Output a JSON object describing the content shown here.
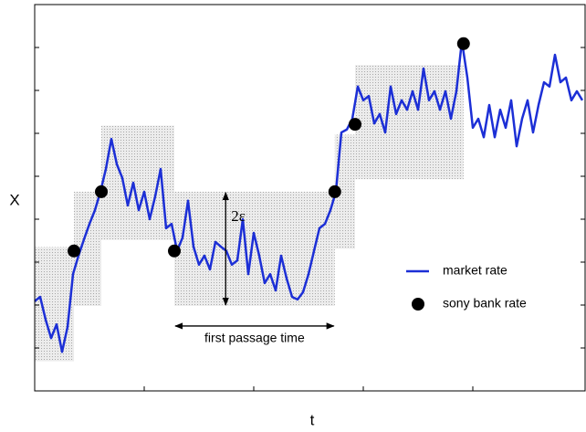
{
  "chart_data": {
    "type": "line",
    "x_label": "t",
    "y_label": "X",
    "annotations": {
      "epsilon_label": "2ε",
      "passage_label": "first passage time"
    },
    "xlim": [
      0,
      100.5
    ],
    "ylim": [
      0,
      9
    ],
    "xticks": [
      20,
      40,
      60,
      80
    ],
    "yticks": [
      1,
      2,
      3,
      4,
      5,
      6,
      7,
      8
    ],
    "grid": false,
    "legend": "lower right",
    "x": [
      0,
      1,
      2,
      3,
      4,
      5,
      6,
      7,
      8,
      9,
      10,
      11,
      12,
      13,
      14,
      15,
      16,
      17,
      18,
      19,
      20,
      21,
      22,
      23,
      24,
      25,
      26,
      27,
      28,
      29,
      30,
      31,
      32,
      33,
      34,
      35,
      36,
      37,
      38,
      39,
      40,
      41,
      42,
      43,
      44,
      45,
      46,
      47,
      48,
      49,
      50,
      51,
      52,
      53,
      54,
      55,
      56,
      57,
      58,
      59,
      60,
      61,
      62,
      63,
      64,
      65,
      66,
      67,
      68,
      69,
      70,
      71,
      72,
      73,
      74,
      75,
      76,
      77,
      78,
      79,
      80,
      81,
      82,
      83,
      84,
      85,
      86,
      87,
      88,
      89,
      90,
      91,
      92,
      93,
      94,
      95,
      96,
      97,
      98,
      99,
      100
    ],
    "series": [
      {
        "name": "market rate",
        "color": "#1c2fd6",
        "values": [
          2.09,
          2.19,
          1.66,
          1.23,
          1.55,
          0.91,
          1.49,
          2.72,
          3.15,
          3.53,
          3.89,
          4.21,
          4.64,
          5.17,
          5.87,
          5.28,
          4.96,
          4.32,
          4.85,
          4.21,
          4.64,
          4.0,
          4.53,
          5.17,
          3.79,
          3.89,
          3.26,
          3.57,
          4.43,
          3.36,
          2.94,
          3.15,
          2.83,
          3.47,
          3.36,
          3.26,
          2.94,
          3.04,
          4.0,
          2.72,
          3.68,
          3.15,
          2.51,
          2.72,
          2.34,
          3.15,
          2.62,
          2.19,
          2.13,
          2.3,
          2.72,
          3.26,
          3.79,
          3.89,
          4.21,
          4.64,
          6.02,
          6.09,
          6.34,
          7.09,
          6.77,
          6.87,
          6.23,
          6.45,
          6.02,
          7.09,
          6.45,
          6.77,
          6.55,
          6.98,
          6.55,
          7.51,
          6.77,
          6.98,
          6.55,
          6.98,
          6.34,
          6.98,
          8.15,
          7.3,
          6.13,
          6.34,
          5.91,
          6.66,
          5.91,
          6.55,
          6.13,
          6.77,
          5.7,
          6.34,
          6.77,
          6.02,
          6.66,
          7.19,
          7.09,
          7.83,
          7.19,
          7.3,
          6.77,
          6.98,
          6.77
        ]
      },
      {
        "name": "sony bank rate",
        "color": "#000000",
        "marker": true,
        "x": [
          7.17,
          12.17,
          25.5,
          54.8,
          58.5,
          78.3
        ],
        "values": [
          3.26,
          4.64,
          3.26,
          4.64,
          6.21,
          8.09
        ]
      }
    ],
    "epsilon": 1.33,
    "bands": [
      {
        "start": 0,
        "end": 7.17,
        "level": 2.02
      },
      {
        "start": 7.17,
        "end": 12.17,
        "level": 3.31
      },
      {
        "start": 12.17,
        "end": 25.5,
        "level": 4.85
      },
      {
        "start": 25.5,
        "end": 54.8,
        "level": 3.31
      },
      {
        "start": 54.8,
        "end": 58.5,
        "level": 4.64
      },
      {
        "start": 58.5,
        "end": 78.3,
        "level": 6.26
      }
    ],
    "band_color": "#e4e4e4"
  }
}
